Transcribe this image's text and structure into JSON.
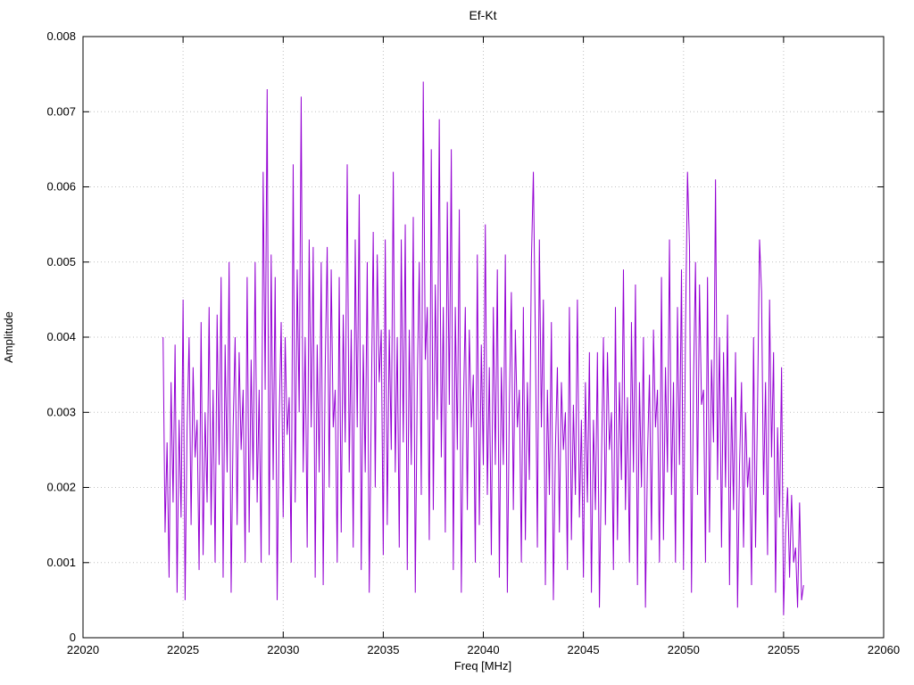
{
  "chart_data": {
    "type": "line",
    "title": "Ef-Kt",
    "xlabel": "Freq [MHz]",
    "ylabel": "Amplitude",
    "xlim": [
      22020,
      22060
    ],
    "ylim": [
      0,
      0.008
    ],
    "x_ticks": [
      22020,
      22025,
      22030,
      22035,
      22040,
      22045,
      22050,
      22055,
      22060
    ],
    "y_ticks": [
      0,
      0.001,
      0.002,
      0.003,
      0.004,
      0.005,
      0.006,
      0.007,
      0.008
    ],
    "grid": true,
    "legend": "none",
    "line_color": "#9400d3",
    "grid_color": "#c0c0c0",
    "border_color": "#000000",
    "series": [
      {
        "name": "Ef-Kt",
        "x_start": 22024.0,
        "x_step": 0.1,
        "amplitude_scale": 0.0001,
        "amplitudes_1e4": [
          40,
          14,
          26,
          8,
          34,
          18,
          39,
          6,
          29,
          16,
          45,
          5,
          28,
          40,
          15,
          36,
          24,
          29,
          9,
          42,
          11,
          30,
          18,
          44,
          15,
          33,
          10,
          43,
          23,
          48,
          8,
          39,
          22,
          50,
          6,
          28,
          40,
          15,
          38,
          25,
          33,
          10,
          48,
          14,
          37,
          21,
          50,
          18,
          33,
          10,
          62,
          33,
          73,
          11,
          51,
          21,
          48,
          5,
          29,
          42,
          16,
          40,
          27,
          32,
          10,
          63,
          18,
          49,
          30,
          72,
          22,
          40,
          12,
          53,
          28,
          52,
          8,
          39,
          22,
          50,
          7,
          36,
          52,
          20,
          49,
          28,
          33,
          10,
          48,
          14,
          43,
          26,
          63,
          22,
          41,
          12,
          53,
          28,
          59,
          9,
          39,
          22,
          50,
          6,
          30,
          54,
          20,
          51,
          34,
          41,
          11,
          53,
          15,
          41,
          25,
          62,
          22,
          40,
          12,
          53,
          26,
          55,
          9,
          41,
          23,
          56,
          6,
          34,
          50,
          19,
          74,
          37,
          44,
          13,
          65,
          17,
          47,
          29,
          69,
          24,
          44,
          14,
          58,
          31,
          65,
          9,
          44,
          25,
          57,
          6,
          30,
          44,
          17,
          41,
          28,
          35,
          10,
          51,
          15,
          39,
          23,
          55,
          19,
          36,
          11,
          44,
          23,
          49,
          8,
          36,
          23,
          51,
          6,
          31,
          46,
          17,
          41,
          28,
          33,
          10,
          44,
          13,
          34,
          21,
          50,
          62,
          40,
          12,
          53,
          28,
          45,
          7,
          33,
          19,
          42,
          5,
          25,
          36,
          14,
          34,
          25,
          30,
          9,
          44,
          13,
          31,
          19,
          45,
          16,
          29,
          8,
          34,
          18,
          38,
          6,
          29,
          17,
          38,
          4,
          23,
          40,
          15,
          38,
          25,
          30,
          9,
          44,
          13,
          34,
          21,
          49,
          17,
          32,
          10,
          42,
          22,
          47,
          7,
          34,
          20,
          40,
          4,
          24,
          35,
          13,
          41,
          28,
          33,
          10,
          48,
          13,
          36,
          22,
          53,
          19,
          34,
          10,
          44,
          23,
          49,
          9,
          41,
          62,
          52,
          6,
          34,
          50,
          19,
          47,
          31,
          33,
          10,
          48,
          14,
          37,
          26,
          61,
          21,
          40,
          12,
          38,
          20,
          43,
          7,
          32,
          17,
          38,
          4,
          23,
          34,
          12,
          30,
          20,
          24,
          7,
          40,
          12,
          31,
          53,
          46,
          19,
          34,
          11,
          45,
          24,
          38,
          6,
          28,
          16,
          36,
          3,
          14,
          20,
          8,
          19,
          10,
          12,
          4,
          18,
          5,
          7
        ]
      }
    ]
  }
}
